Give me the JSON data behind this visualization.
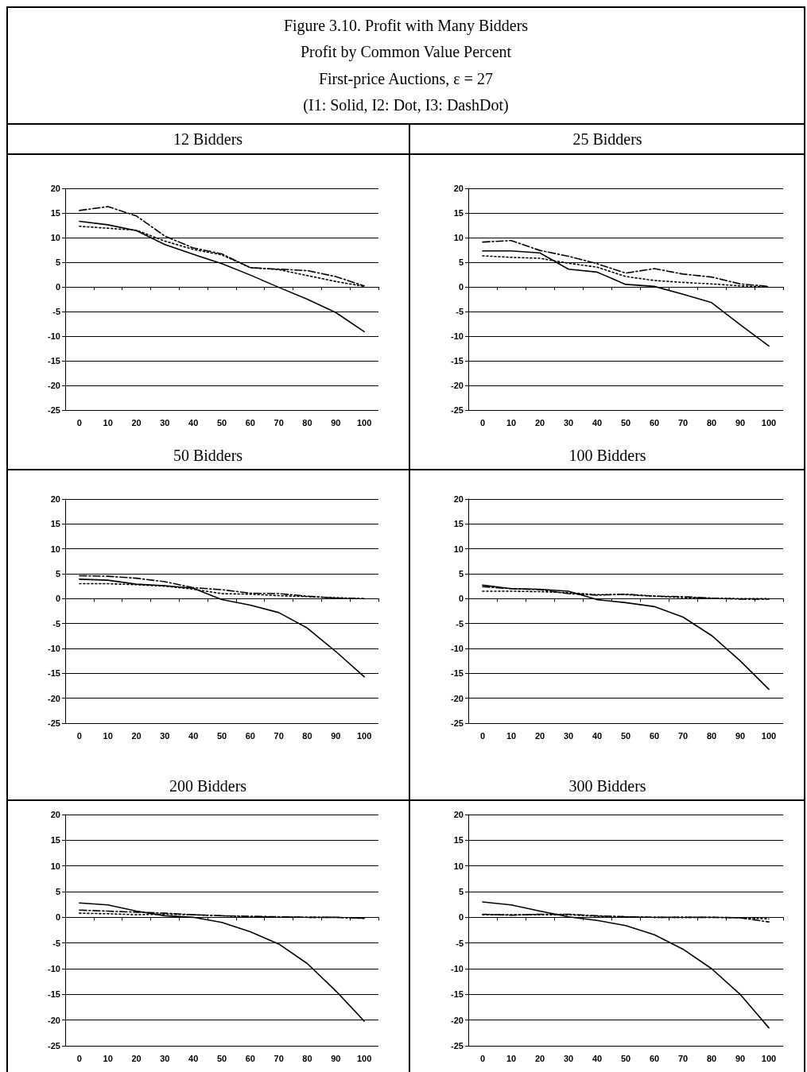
{
  "chart_data": [
    {
      "type": "line",
      "title": "12 Bidders",
      "annotations": [
        "Figure 3.10.  Profit with Many Bidders",
        "Profit by Common Value Percent",
        "First-price Auctions, ε = 27",
        "(I1:  Solid, I2: Dot, I3:  DashDot)"
      ],
      "categories": [
        "0",
        "10",
        "20",
        "30",
        "40",
        "50",
        "60",
        "70",
        "80",
        "90",
        "100"
      ],
      "ylim": [
        -25,
        20
      ],
      "yticks": [
        -25,
        -20,
        -15,
        -10,
        -5,
        0,
        5,
        10,
        15,
        20
      ],
      "grid": "y",
      "marker": "none",
      "series": [
        {
          "color": "#000000",
          "line_style": "solid",
          "values": [
            13.3,
            12.6,
            11.4,
            8.6,
            6.6,
            4.7,
            2.4,
            -0.1,
            -2.5,
            -5.2,
            -9.1
          ]
        },
        {
          "color": "#000000",
          "line_style": "dotted",
          "values": [
            12.3,
            11.9,
            11.5,
            9.3,
            7.6,
            6.5,
            3.9,
            3.5,
            2.3,
            1.1,
            0.1
          ]
        },
        {
          "color": "#000000",
          "line_style": "dashed",
          "values": [
            15.5,
            16.3,
            14.4,
            10.3,
            7.9,
            6.7,
            3.9,
            3.6,
            3.3,
            2.1,
            0.2
          ]
        }
      ]
    },
    {
      "type": "line",
      "title": "25 Bidders",
      "categories": [
        "0",
        "10",
        "20",
        "30",
        "40",
        "50",
        "60",
        "70",
        "80",
        "90",
        "100"
      ],
      "ylim": [
        -25,
        20
      ],
      "yticks": [
        -25,
        -20,
        -15,
        -10,
        -5,
        0,
        5,
        10,
        15,
        20
      ],
      "grid": "y",
      "marker": "none",
      "series": [
        {
          "color": "#000000",
          "line_style": "solid",
          "values": [
            7.3,
            7.3,
            6.9,
            3.6,
            3.0,
            0.5,
            0.1,
            -1.5,
            -3.2,
            -7.7,
            -12.0
          ]
        },
        {
          "color": "#000000",
          "line_style": "dotted",
          "values": [
            6.3,
            6.0,
            5.8,
            4.8,
            4.0,
            2.1,
            1.3,
            0.9,
            0.6,
            0.2,
            0
          ]
        },
        {
          "color": "#000000",
          "line_style": "dashed",
          "values": [
            9.1,
            9.4,
            7.4,
            6.2,
            4.7,
            2.8,
            3.7,
            2.6,
            2.0,
            0.6,
            0.1
          ]
        }
      ]
    },
    {
      "type": "line",
      "title": "50 Bidders",
      "categories": [
        "0",
        "10",
        "20",
        "30",
        "40",
        "50",
        "60",
        "70",
        "80",
        "90",
        "100"
      ],
      "ylim": [
        -25,
        20
      ],
      "yticks": [
        -25,
        -20,
        -15,
        -10,
        -5,
        0,
        5,
        10,
        15,
        20
      ],
      "grid": "y",
      "marker": "none",
      "series": [
        {
          "color": "#000000",
          "line_style": "solid",
          "values": [
            3.9,
            3.7,
            2.9,
            2.6,
            2.1,
            -0.2,
            -1.3,
            -2.8,
            -5.9,
            -10.6,
            -15.7
          ]
        },
        {
          "color": "#000000",
          "line_style": "dotted",
          "values": [
            3.0,
            3.0,
            2.8,
            2.5,
            1.9,
            1.0,
            0.9,
            0.6,
            0.4,
            0.2,
            0
          ]
        },
        {
          "color": "#000000",
          "line_style": "dashed",
          "values": [
            4.6,
            4.5,
            4.1,
            3.4,
            2.2,
            1.8,
            1.1,
            1.0,
            0.5,
            0.1,
            0
          ]
        }
      ]
    },
    {
      "type": "line",
      "title": "100 Bidders",
      "categories": [
        "0",
        "10",
        "20",
        "30",
        "40",
        "50",
        "60",
        "70",
        "80",
        "90",
        "100"
      ],
      "ylim": [
        -25,
        20
      ],
      "yticks": [
        -25,
        -20,
        -15,
        -10,
        -5,
        0,
        5,
        10,
        15,
        20
      ],
      "grid": "y",
      "marker": "none",
      "series": [
        {
          "color": "#000000",
          "line_style": "solid",
          "values": [
            2.7,
            2.0,
            1.9,
            1.5,
            -0.2,
            -0.8,
            -1.6,
            -3.7,
            -7.4,
            -12.5,
            -18.2
          ]
        },
        {
          "color": "#000000",
          "line_style": "dotted",
          "values": [
            1.5,
            1.5,
            1.4,
            1.2,
            0.8,
            0.8,
            0.5,
            0.2,
            0.1,
            0,
            0
          ]
        },
        {
          "color": "#000000",
          "line_style": "dashed",
          "values": [
            2.4,
            2.0,
            1.8,
            1.0,
            0.7,
            0.9,
            0.5,
            0.4,
            0.1,
            -0.1,
            -0.1
          ]
        }
      ]
    },
    {
      "type": "line",
      "title": "200 Bidders",
      "categories": [
        "0",
        "10",
        "20",
        "30",
        "40",
        "50",
        "60",
        "70",
        "80",
        "90",
        "100"
      ],
      "ylim": [
        -25,
        20
      ],
      "yticks": [
        -25,
        -20,
        -15,
        -10,
        -5,
        0,
        5,
        10,
        15,
        20
      ],
      "grid": "y",
      "marker": "none",
      "series": [
        {
          "color": "#000000",
          "line_style": "solid",
          "values": [
            2.8,
            2.4,
            1.2,
            0.3,
            0,
            -1.0,
            -2.8,
            -5.2,
            -9.0,
            -14.3,
            -20.2
          ]
        },
        {
          "color": "#000000",
          "line_style": "dotted",
          "values": [
            0.8,
            0.7,
            0.5,
            0.6,
            0.5,
            0.3,
            0.1,
            0.1,
            0,
            0,
            -0.2
          ]
        },
        {
          "color": "#000000",
          "line_style": "dashed",
          "values": [
            1.4,
            1.2,
            1.0,
            0.8,
            0.5,
            0.3,
            0.2,
            0.1,
            0,
            0,
            -0.2
          ]
        }
      ]
    },
    {
      "type": "line",
      "title": "300 Bidders",
      "categories": [
        "0",
        "10",
        "20",
        "30",
        "40",
        "50",
        "60",
        "70",
        "80",
        "90",
        "100"
      ],
      "ylim": [
        -25,
        20
      ],
      "yticks": [
        -25,
        -20,
        -15,
        -10,
        -5,
        0,
        5,
        10,
        15,
        20
      ],
      "grid": "y",
      "marker": "none",
      "series": [
        {
          "color": "#000000",
          "line_style": "solid",
          "values": [
            3.0,
            2.4,
            1.2,
            0.1,
            -0.6,
            -1.6,
            -3.4,
            -6.2,
            -10.0,
            -15.0,
            -21.5
          ]
        },
        {
          "color": "#000000",
          "line_style": "dotted",
          "values": [
            0.5,
            0.5,
            0.5,
            0.5,
            0.2,
            0.1,
            0,
            0,
            0,
            -0.1,
            -0.3
          ]
        },
        {
          "color": "#000000",
          "line_style": "dashed",
          "values": [
            0.6,
            0.4,
            0.6,
            0.6,
            0.3,
            0.1,
            0,
            0,
            0,
            -0.1,
            -0.9
          ]
        }
      ]
    }
  ]
}
